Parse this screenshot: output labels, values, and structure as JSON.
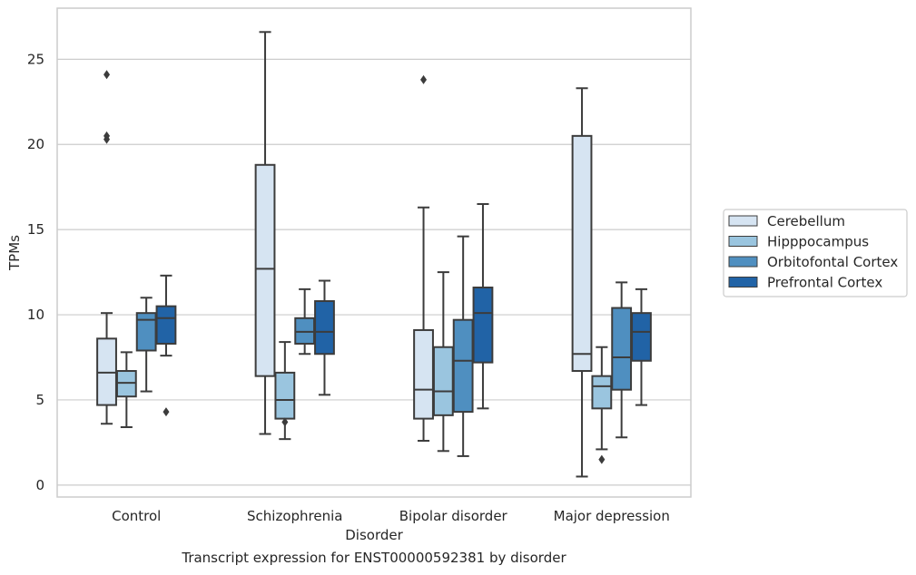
{
  "chart_data": {
    "type": "boxplot",
    "caption": "Transcript expression for ENST00000592381 by disorder",
    "xlabel": "Disorder",
    "ylabel": "TPMs",
    "ylim": [
      -0.7,
      28
    ],
    "yticks": [
      0,
      5,
      10,
      15,
      20,
      25
    ],
    "grid": "horizontal",
    "legend_position": "right",
    "categories": [
      "Control",
      "Schizophrenia",
      "Bipolar disorder",
      "Major depression"
    ],
    "series": [
      {
        "name": "Cerebellum",
        "color": "#d6e4f2",
        "boxes": [
          {
            "whislo": 3.6,
            "q1": 4.7,
            "med": 6.6,
            "q3": 8.6,
            "whishi": 10.1,
            "fliers": [
              24.1,
              20.5,
              20.3
            ]
          },
          {
            "whislo": 3.0,
            "q1": 6.4,
            "med": 12.7,
            "q3": 18.8,
            "whishi": 26.6,
            "fliers": []
          },
          {
            "whislo": 2.6,
            "q1": 3.9,
            "med": 5.6,
            "q3": 9.1,
            "whishi": 16.3,
            "fliers": [
              23.8
            ]
          },
          {
            "whislo": 0.5,
            "q1": 6.7,
            "med": 7.7,
            "q3": 20.5,
            "whishi": 23.3,
            "fliers": []
          }
        ]
      },
      {
        "name": "Hipppocampus",
        "color": "#9ac5df",
        "boxes": [
          {
            "whislo": 3.4,
            "q1": 5.2,
            "med": 6.0,
            "q3": 6.7,
            "whishi": 7.8,
            "fliers": []
          },
          {
            "whislo": 2.7,
            "q1": 3.9,
            "med": 5.0,
            "q3": 6.6,
            "whishi": 8.4,
            "fliers": [
              3.7
            ]
          },
          {
            "whislo": 2.0,
            "q1": 4.1,
            "med": 5.5,
            "q3": 8.1,
            "whishi": 12.5,
            "fliers": []
          },
          {
            "whislo": 2.1,
            "q1": 4.5,
            "med": 5.8,
            "q3": 6.4,
            "whishi": 8.1,
            "fliers": [
              1.5
            ]
          }
        ]
      },
      {
        "name": "Orbitofontal Cortex",
        "color": "#4f8fc0",
        "boxes": [
          {
            "whislo": 5.5,
            "q1": 7.9,
            "med": 9.7,
            "q3": 10.1,
            "whishi": 11.0,
            "fliers": []
          },
          {
            "whislo": 7.7,
            "q1": 8.3,
            "med": 9.0,
            "q3": 9.8,
            "whishi": 11.5,
            "fliers": []
          },
          {
            "whislo": 1.7,
            "q1": 4.3,
            "med": 7.3,
            "q3": 9.7,
            "whishi": 14.6,
            "fliers": []
          },
          {
            "whislo": 2.8,
            "q1": 5.6,
            "med": 7.5,
            "q3": 10.4,
            "whishi": 11.9,
            "fliers": []
          }
        ]
      },
      {
        "name": "Prefrontal Cortex",
        "color": "#2163a6",
        "boxes": [
          {
            "whislo": 7.6,
            "q1": 8.3,
            "med": 9.8,
            "q3": 10.5,
            "whishi": 12.3,
            "fliers": [
              4.3
            ]
          },
          {
            "whislo": 5.3,
            "q1": 7.7,
            "med": 9.0,
            "q3": 10.8,
            "whishi": 12.0,
            "fliers": []
          },
          {
            "whislo": 4.5,
            "q1": 7.2,
            "med": 10.1,
            "q3": 11.6,
            "whishi": 16.5,
            "fliers": []
          },
          {
            "whislo": 4.7,
            "q1": 7.3,
            "med": 9.0,
            "q3": 10.1,
            "whishi": 11.5,
            "fliers": []
          }
        ]
      }
    ]
  }
}
